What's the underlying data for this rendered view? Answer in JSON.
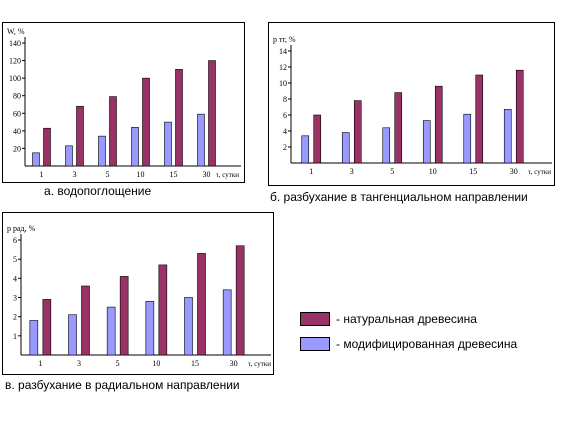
{
  "colors": {
    "natural": "#993366",
    "modified": "#9999ff"
  },
  "legend": {
    "natural": "- натуральная древесина",
    "modified": "- модифицированная древесина"
  },
  "chart_data": [
    {
      "type": "bar",
      "caption": "а. водопоглощение",
      "ylabel": "W, %",
      "xlabel": "τ, сутки",
      "categories": [
        "1",
        "3",
        "5",
        "10",
        "15",
        "30"
      ],
      "ylim": [
        0,
        140
      ],
      "yticks": [
        20,
        40,
        60,
        80,
        100,
        120,
        140
      ],
      "series": [
        {
          "name": "- модифицированная древесина",
          "values": [
            15,
            23,
            34,
            44,
            50,
            59
          ]
        },
        {
          "name": "- натуральная древесина",
          "values": [
            43,
            68,
            79,
            100,
            110,
            120
          ]
        }
      ]
    },
    {
      "type": "bar",
      "caption": "б. разбухание в тангенциальном направлении",
      "ylabel": "p тг, %",
      "xlabel": "τ, сутки",
      "categories": [
        "1",
        "3",
        "5",
        "10",
        "15",
        "30"
      ],
      "ylim": [
        0,
        14
      ],
      "yticks": [
        2,
        4,
        6,
        8,
        10,
        12,
        14
      ],
      "series": [
        {
          "name": "- модифицированная древесина",
          "values": [
            3.4,
            3.8,
            4.4,
            5.3,
            6.1,
            6.7
          ]
        },
        {
          "name": "- натуральная древесина",
          "values": [
            6.0,
            7.8,
            8.8,
            9.6,
            11.0,
            11.6
          ]
        }
      ]
    },
    {
      "type": "bar",
      "caption": "в. разбухание в радиальном направлении",
      "ylabel": "p рад, %",
      "xlabel": "τ, сутки",
      "categories": [
        "1",
        "3",
        "5",
        "10",
        "15",
        "30"
      ],
      "ylim": [
        0,
        6
      ],
      "yticks": [
        1,
        2,
        3,
        4,
        5,
        6
      ],
      "series": [
        {
          "name": "- модифицированная древесина",
          "values": [
            1.8,
            2.1,
            2.5,
            2.8,
            3.0,
            3.4
          ]
        },
        {
          "name": "- натуральная древесина",
          "values": [
            2.9,
            3.6,
            4.1,
            4.7,
            5.3,
            5.7
          ]
        }
      ]
    }
  ]
}
